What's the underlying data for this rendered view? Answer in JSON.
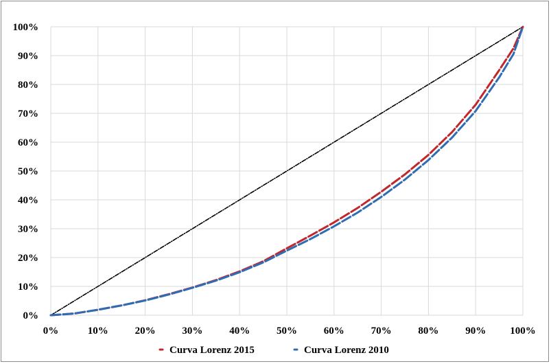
{
  "chart_data": {
    "type": "line",
    "title": "",
    "xlabel": "",
    "ylabel": "",
    "xlim": [
      0,
      100
    ],
    "ylim": [
      0,
      100
    ],
    "grid": true,
    "legend_position": "bottom",
    "x_ticks": [
      "0%",
      "10%",
      "20%",
      "30%",
      "40%",
      "50%",
      "60%",
      "70%",
      "80%",
      "90%",
      "100%"
    ],
    "y_ticks": [
      "0%",
      "10%",
      "20%",
      "30%",
      "40%",
      "50%",
      "60%",
      "70%",
      "80%",
      "90%",
      "100%"
    ],
    "series": [
      {
        "name": "",
        "role": "equality line",
        "color": "#000000",
        "style": "dash-dot",
        "x": [
          0,
          100
        ],
        "y": [
          0,
          100
        ]
      },
      {
        "name": "Curva Lorenz 2015",
        "color": "#c0282d",
        "style": "dashed",
        "x": [
          0,
          5,
          10,
          15,
          20,
          25,
          30,
          35,
          40,
          45,
          50,
          55,
          60,
          65,
          70,
          75,
          80,
          85,
          90,
          95,
          98,
          100
        ],
        "y": [
          0,
          0.6,
          1.9,
          3.4,
          5.2,
          7.3,
          9.6,
          12.2,
          15.2,
          18.7,
          23.2,
          27.6,
          32.2,
          37.2,
          42.8,
          48.8,
          55.6,
          63.5,
          73.0,
          85.0,
          92.5,
          100
        ]
      },
      {
        "name": "Curva Lorenz 2010",
        "color": "#2e6db4",
        "style": "dashed",
        "x": [
          0,
          5,
          10,
          15,
          20,
          25,
          30,
          35,
          40,
          45,
          50,
          55,
          60,
          65,
          70,
          75,
          80,
          85,
          90,
          95,
          98,
          100
        ],
        "y": [
          0,
          0.6,
          1.9,
          3.4,
          5.1,
          7.2,
          9.5,
          12.0,
          14.9,
          18.3,
          22.4,
          26.4,
          30.8,
          35.6,
          41.0,
          47.0,
          53.8,
          61.6,
          70.8,
          82.5,
          90.5,
          100
        ]
      }
    ]
  }
}
